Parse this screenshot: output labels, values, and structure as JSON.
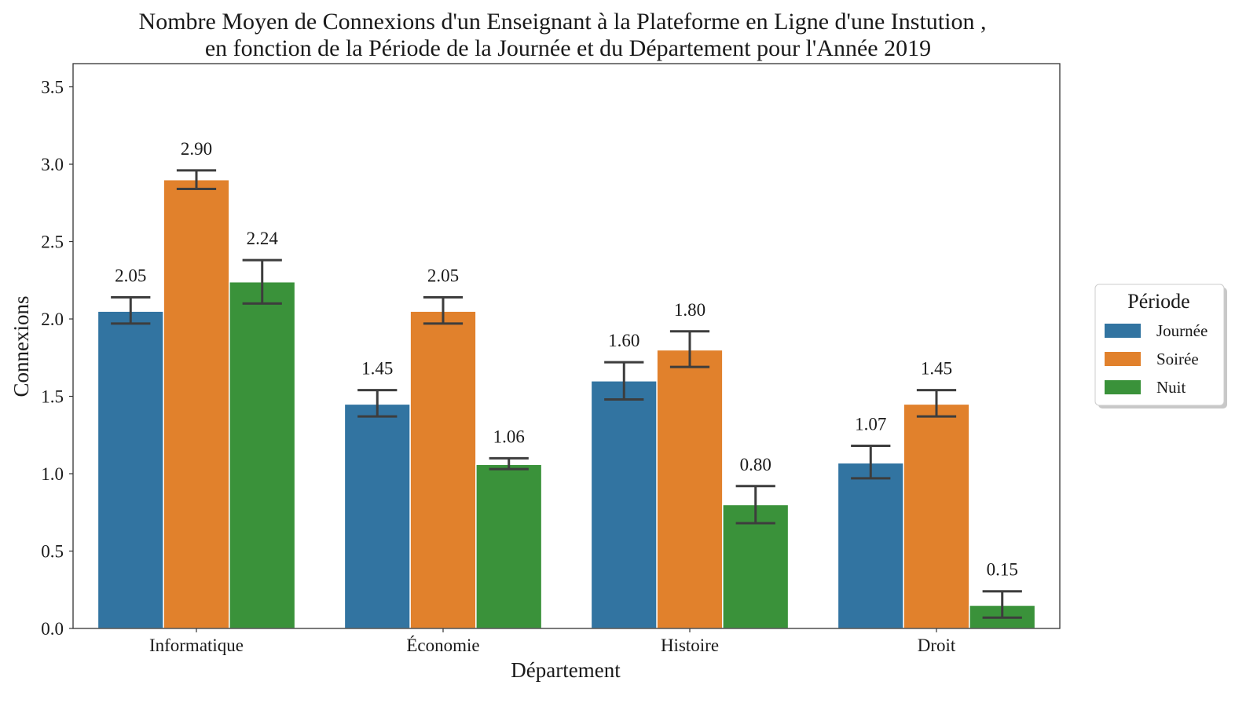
{
  "chart_data": {
    "type": "bar",
    "title": "Nombre Moyen de Connexions d'un Enseignant à la Plateforme en Ligne d'une Instution ,",
    "subtitle": "en fonction de la Période de la Journée et du Département pour l'Année 2019",
    "xlabel": "Département",
    "ylabel": "Connexions",
    "ylim": [
      0,
      3.65
    ],
    "yticks": [
      "0.0",
      "0.5",
      "1.0",
      "1.5",
      "2.0",
      "2.5",
      "3.0",
      "3.5"
    ],
    "ytick_values": [
      0,
      0.5,
      1.0,
      1.5,
      2.0,
      2.5,
      3.0,
      3.5
    ],
    "categories": [
      "Informatique",
      "Économie",
      "Histoire",
      "Droit"
    ],
    "series": [
      {
        "name": "Journée",
        "color": "#3274a1",
        "values": [
          2.05,
          1.45,
          1.6,
          1.07
        ],
        "labels": [
          "2.05",
          "1.45",
          "1.60",
          "1.07"
        ],
        "err_low": [
          1.97,
          1.37,
          1.48,
          0.97
        ],
        "err_high": [
          2.14,
          1.54,
          1.72,
          1.18
        ]
      },
      {
        "name": "Soirée",
        "color": "#e1812c",
        "values": [
          2.9,
          2.05,
          1.8,
          1.45
        ],
        "labels": [
          "2.90",
          "2.05",
          "1.80",
          "1.45"
        ],
        "err_low": [
          2.84,
          1.97,
          1.69,
          1.37
        ],
        "err_high": [
          2.96,
          2.14,
          1.92,
          1.54
        ]
      },
      {
        "name": "Nuit",
        "color": "#3a923a",
        "values": [
          2.24,
          1.06,
          0.8,
          0.15
        ],
        "labels": [
          "2.24",
          "1.06",
          "0.80",
          "0.15"
        ],
        "err_low": [
          2.1,
          1.03,
          0.68,
          0.07
        ],
        "err_high": [
          2.38,
          1.1,
          0.92,
          0.24
        ]
      }
    ],
    "grid": false,
    "legend": {
      "title": "Période",
      "placement": "right"
    }
  }
}
